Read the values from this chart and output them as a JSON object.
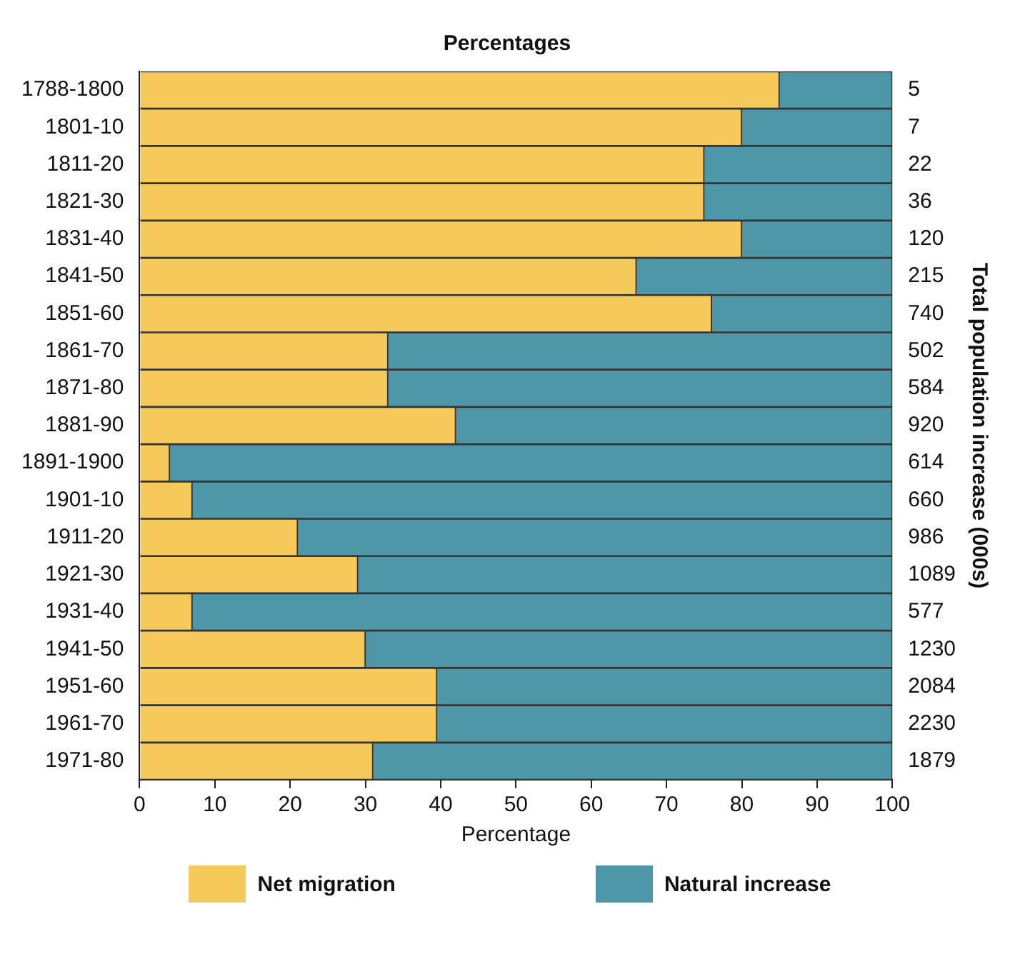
{
  "chart_data": {
    "type": "bar",
    "orientation": "horizontal",
    "stacked": true,
    "title": "Percentages",
    "xlabel": "Percentage",
    "y2label": "Total population increase (000s)",
    "categories": [
      "1788-1800",
      "1801-10",
      "1811-20",
      "1821-30",
      "1831-40",
      "1841-50",
      "1851-60",
      "1861-70",
      "1871-80",
      "1881-90",
      "1891-1900",
      "1901-10",
      "1911-20",
      "1921-30",
      "1931-40",
      "1941-50",
      "1951-60",
      "1961-70",
      "1971-80"
    ],
    "y2_categories": [
      "5",
      "7",
      "22",
      "36",
      "120",
      "215",
      "740",
      "502",
      "584",
      "920",
      "614",
      "660",
      "986",
      "1089",
      "577",
      "1230",
      "2084",
      "2230",
      "1879"
    ],
    "series": [
      {
        "name": "Net migration",
        "color": "#f5c95a",
        "values": [
          85,
          80,
          75,
          75,
          80,
          66,
          76,
          33,
          33,
          42,
          4,
          7,
          21,
          29,
          7,
          30,
          39.5,
          39.5,
          31
        ]
      },
      {
        "name": "Natural increase",
        "color": "#4e97a8",
        "values": [
          15,
          20,
          25,
          25,
          20,
          34,
          24,
          67,
          67,
          58,
          96,
          93,
          79,
          71,
          93,
          70,
          60.5,
          60.5,
          69
        ]
      }
    ],
    "xlim": [
      0,
      100
    ],
    "xticks": [
      0,
      10,
      20,
      30,
      40,
      50,
      60,
      70,
      80,
      90,
      100
    ],
    "grid": false,
    "legend": "bottom"
  }
}
